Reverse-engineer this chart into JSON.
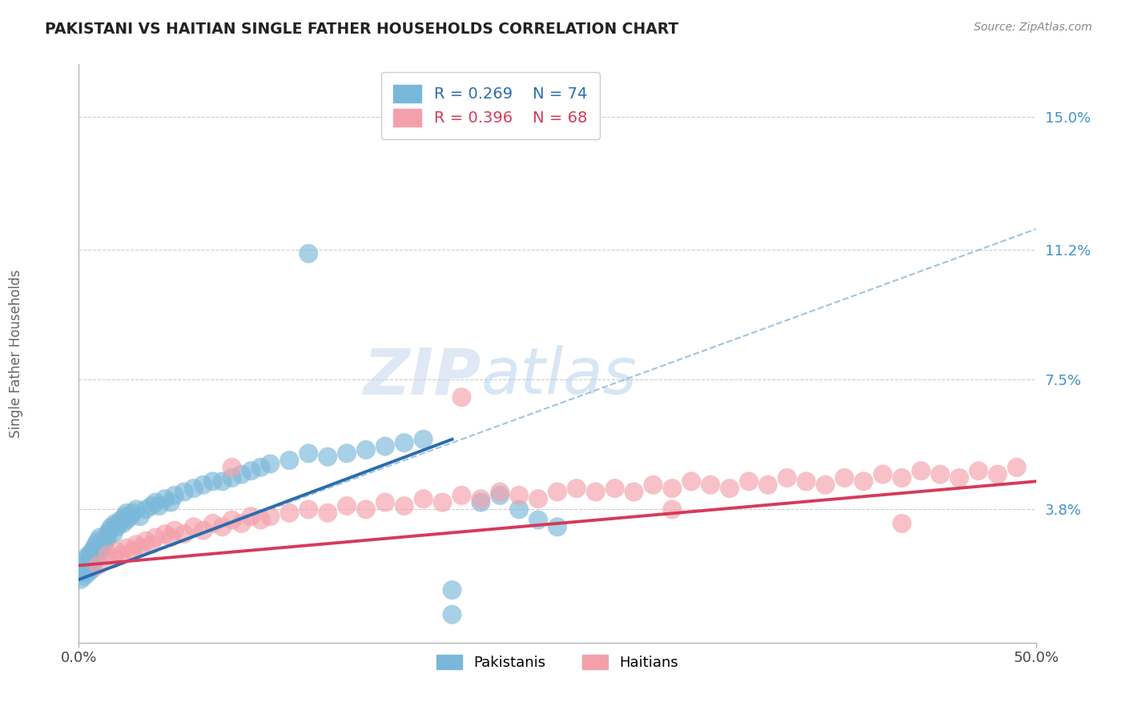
{
  "title": "PAKISTANI VS HAITIAN SINGLE FATHER HOUSEHOLDS CORRELATION CHART",
  "source": "Source: ZipAtlas.com",
  "ylabel": "Single Father Households",
  "xlim": [
    0.0,
    0.5
  ],
  "ylim": [
    0.0,
    0.165
  ],
  "yticks": [
    0.038,
    0.075,
    0.112,
    0.15
  ],
  "ytick_labels": [
    "3.8%",
    "7.5%",
    "11.2%",
    "15.0%"
  ],
  "xtick_positions": [
    0.0,
    0.5
  ],
  "xtick_labels": [
    "0.0%",
    "50.0%"
  ],
  "pakistani_R": 0.269,
  "pakistani_N": 74,
  "haitian_R": 0.396,
  "haitian_N": 68,
  "blue_color": "#7ab8d9",
  "pink_color": "#f4a0aa",
  "blue_line_color": "#2b6cb0",
  "pink_line_color": "#d63a5a",
  "dashed_line_color": "#a0c4e0",
  "watermark_zip": "ZIP",
  "watermark_atlas": "atlas",
  "background_color": "#ffffff",
  "grid_color": "#cccccc",
  "blue_pak_x": [
    0.001,
    0.002,
    0.003,
    0.003,
    0.004,
    0.004,
    0.005,
    0.005,
    0.005,
    0.006,
    0.006,
    0.007,
    0.007,
    0.008,
    0.008,
    0.009,
    0.009,
    0.01,
    0.01,
    0.011,
    0.011,
    0.012,
    0.013,
    0.014,
    0.015,
    0.015,
    0.016,
    0.017,
    0.018,
    0.019,
    0.02,
    0.021,
    0.022,
    0.023,
    0.024,
    0.025,
    0.025,
    0.027,
    0.028,
    0.03,
    0.032,
    0.035,
    0.038,
    0.04,
    0.042,
    0.045,
    0.048,
    0.05,
    0.055,
    0.06,
    0.065,
    0.07,
    0.075,
    0.08,
    0.085,
    0.09,
    0.095,
    0.1,
    0.11,
    0.12,
    0.13,
    0.14,
    0.15,
    0.16,
    0.17,
    0.18,
    0.195,
    0.21,
    0.22,
    0.23,
    0.24,
    0.25,
    0.195,
    0.12
  ],
  "blue_pak_y": [
    0.018,
    0.02,
    0.019,
    0.022,
    0.021,
    0.024,
    0.02,
    0.023,
    0.025,
    0.022,
    0.025,
    0.021,
    0.026,
    0.023,
    0.027,
    0.024,
    0.028,
    0.025,
    0.029,
    0.026,
    0.03,
    0.027,
    0.028,
    0.029,
    0.03,
    0.031,
    0.032,
    0.033,
    0.031,
    0.034,
    0.033,
    0.034,
    0.035,
    0.034,
    0.036,
    0.035,
    0.037,
    0.036,
    0.037,
    0.038,
    0.036,
    0.038,
    0.039,
    0.04,
    0.039,
    0.041,
    0.04,
    0.042,
    0.043,
    0.044,
    0.045,
    0.046,
    0.046,
    0.047,
    0.048,
    0.049,
    0.05,
    0.051,
    0.052,
    0.054,
    0.053,
    0.054,
    0.055,
    0.056,
    0.057,
    0.058,
    0.008,
    0.04,
    0.042,
    0.038,
    0.035,
    0.033,
    0.015,
    0.111
  ],
  "pink_hai_x": [
    0.01,
    0.015,
    0.018,
    0.02,
    0.022,
    0.025,
    0.028,
    0.03,
    0.032,
    0.035,
    0.038,
    0.04,
    0.045,
    0.048,
    0.05,
    0.055,
    0.06,
    0.065,
    0.07,
    0.075,
    0.08,
    0.085,
    0.09,
    0.095,
    0.1,
    0.11,
    0.12,
    0.13,
    0.14,
    0.15,
    0.16,
    0.17,
    0.18,
    0.19,
    0.2,
    0.21,
    0.22,
    0.23,
    0.24,
    0.25,
    0.26,
    0.27,
    0.28,
    0.29,
    0.3,
    0.31,
    0.32,
    0.33,
    0.34,
    0.35,
    0.36,
    0.37,
    0.38,
    0.39,
    0.4,
    0.41,
    0.42,
    0.43,
    0.44,
    0.45,
    0.46,
    0.47,
    0.48,
    0.49,
    0.31,
    0.43,
    0.2,
    0.08
  ],
  "pink_hai_y": [
    0.022,
    0.025,
    0.024,
    0.026,
    0.025,
    0.027,
    0.026,
    0.028,
    0.027,
    0.029,
    0.028,
    0.03,
    0.031,
    0.03,
    0.032,
    0.031,
    0.033,
    0.032,
    0.034,
    0.033,
    0.035,
    0.034,
    0.036,
    0.035,
    0.036,
    0.037,
    0.038,
    0.037,
    0.039,
    0.038,
    0.04,
    0.039,
    0.041,
    0.04,
    0.042,
    0.041,
    0.043,
    0.042,
    0.041,
    0.043,
    0.044,
    0.043,
    0.044,
    0.043,
    0.045,
    0.044,
    0.046,
    0.045,
    0.044,
    0.046,
    0.045,
    0.047,
    0.046,
    0.045,
    0.047,
    0.046,
    0.048,
    0.047,
    0.049,
    0.048,
    0.047,
    0.049,
    0.048,
    0.05,
    0.038,
    0.034,
    0.07,
    0.05
  ],
  "blue_line_x0": 0.0,
  "blue_line_x1": 0.195,
  "blue_line_y0": 0.018,
  "blue_line_y1": 0.058,
  "pink_line_x0": 0.0,
  "pink_line_x1": 0.5,
  "pink_line_y0": 0.022,
  "pink_line_y1": 0.046,
  "dash_line_x0": 0.0,
  "dash_line_x1": 0.5,
  "dash_line_y0": 0.018,
  "dash_line_y1": 0.118
}
